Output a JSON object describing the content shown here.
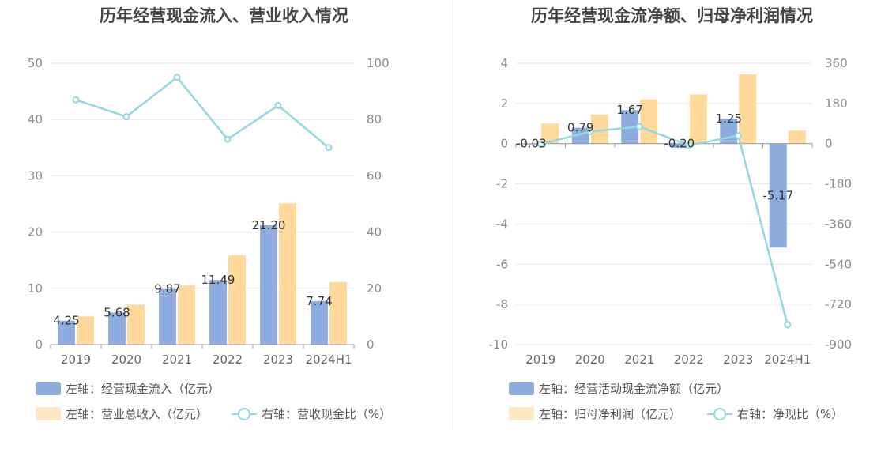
{
  "colors": {
    "bar_primary": "#8eadde",
    "bar_secondary": "#ffd99b",
    "bar_secondary_legend": "#fde8c3",
    "line": "#8fd9df",
    "grid": "#e3e6ef",
    "axis": "#999999"
  },
  "left": {
    "title": "历年经营现金流入、营业收入情况",
    "legend": {
      "bar1": "左轴：经营现金流入（亿元）",
      "bar2": "左轴：营业总收入（亿元）",
      "line": "右轴：营收现金比（%）"
    }
  },
  "right": {
    "title": "历年经营现金流净额、归母净利润情况",
    "legend": {
      "bar1": "左轴：经营活动现金流净额（亿元）",
      "bar2": "左轴：归母净利润（亿元）",
      "line": "右轴：净现比（%）"
    }
  },
  "chart_data": [
    {
      "type": "bar",
      "title": "历年经营现金流入、营业收入情况",
      "categories": [
        "2019",
        "2020",
        "2021",
        "2022",
        "2023",
        "2024H1"
      ],
      "left_axis": {
        "ylim": [
          0,
          50
        ],
        "ticks": [
          "0",
          "10",
          "20",
          "30",
          "40",
          "50"
        ]
      },
      "right_axis": {
        "ylim": [
          0,
          100
        ],
        "ticks": [
          "0",
          "20",
          "40",
          "60",
          "80",
          "100"
        ]
      },
      "series": [
        {
          "name": "左轴：经营现金流入（亿元）",
          "kind": "bar",
          "axis": "left",
          "values": [
            4.25,
            5.68,
            9.87,
            11.49,
            21.2,
            7.74
          ],
          "labels": [
            "4.25",
            "5.68",
            "9.87",
            "11.49",
            "21.20",
            "7.74"
          ]
        },
        {
          "name": "左轴：营业总收入（亿元）",
          "kind": "bar",
          "axis": "left",
          "values": [
            5.0,
            7.1,
            10.5,
            15.9,
            25.1,
            11.1
          ]
        },
        {
          "name": "右轴：营收现金比（%）",
          "kind": "line",
          "axis": "right",
          "values": [
            87,
            81,
            95,
            73,
            85,
            70
          ]
        }
      ],
      "grid": true,
      "legend_position": "bottom"
    },
    {
      "type": "bar",
      "title": "历年经营现金流净额、归母净利润情况",
      "categories": [
        "2019",
        "2020",
        "2021",
        "2022",
        "2023",
        "2024H1"
      ],
      "left_axis": {
        "ylim": [
          -10,
          4
        ],
        "ticks": [
          "-10",
          "-8",
          "-6",
          "-4",
          "-2",
          "0",
          "2",
          "4"
        ]
      },
      "right_axis": {
        "ylim": [
          -900,
          360
        ],
        "ticks": [
          "-900",
          "-720",
          "-540",
          "-360",
          "-180",
          "0",
          "180",
          "360"
        ]
      },
      "series": [
        {
          "name": "左轴：经营活动现金流净额（亿元）",
          "kind": "bar",
          "axis": "left",
          "values": [
            -0.03,
            0.79,
            1.67,
            -0.2,
            1.25,
            -5.17
          ],
          "labels": [
            "-0.03",
            "0.79",
            "1.67",
            "-0.20",
            "1.25",
            "-5.17"
          ]
        },
        {
          "name": "左轴：归母净利润（亿元）",
          "kind": "bar",
          "axis": "left",
          "values": [
            1.0,
            1.45,
            2.2,
            2.45,
            3.45,
            0.65
          ]
        },
        {
          "name": "右轴：净现比（%）",
          "kind": "line",
          "axis": "right",
          "values": [
            -3,
            54,
            76,
            -8,
            36,
            -811
          ]
        }
      ],
      "grid": true,
      "legend_position": "bottom"
    }
  ]
}
